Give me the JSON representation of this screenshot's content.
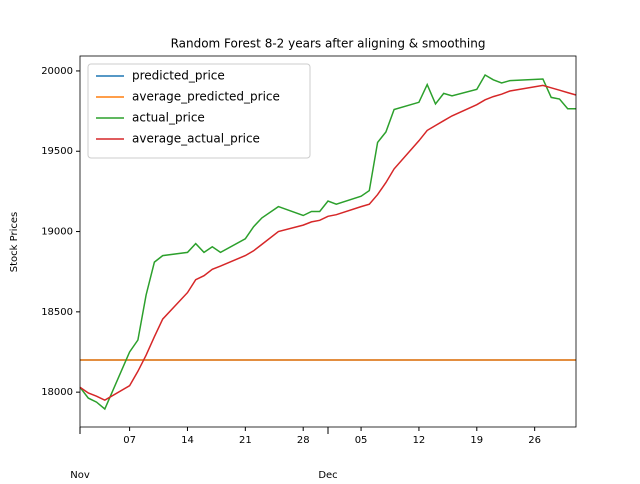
{
  "chart_data": {
    "type": "line",
    "title": "Random Forest 8-2 years after aligning & smoothing",
    "y_label": "Stock Prices",
    "x": [
      "11-01",
      "11-02",
      "11-03",
      "11-04",
      "11-07",
      "11-08",
      "11-09",
      "11-10",
      "11-11",
      "11-14",
      "11-15",
      "11-16",
      "11-17",
      "11-18",
      "11-21",
      "11-22",
      "11-23",
      "11-25",
      "11-28",
      "11-29",
      "11-30",
      "12-01",
      "12-02",
      "12-05",
      "12-06",
      "12-07",
      "12-08",
      "12-09",
      "12-12",
      "12-13",
      "12-14",
      "12-15",
      "12-16",
      "12-19",
      "12-20",
      "12-21",
      "12-22",
      "12-23",
      "12-27",
      "12-28",
      "12-29",
      "12-30",
      "12-31"
    ],
    "series": [
      {
        "name": "predicted_price",
        "color": "#1f77b4",
        "values": [
          18200,
          18200,
          18200,
          18200,
          18200,
          18200,
          18200,
          18200,
          18200,
          18200,
          18200,
          18200,
          18200,
          18200,
          18200,
          18200,
          18200,
          18200,
          18200,
          18200,
          18200,
          18200,
          18200,
          18200,
          18200,
          18200,
          18200,
          18200,
          18200,
          18200,
          18200,
          18200,
          18200,
          18200,
          18200,
          18200,
          18200,
          18200,
          18200,
          18200,
          18200,
          18200,
          18200
        ]
      },
      {
        "name": "average_predicted_price",
        "color": "#ff7f0e",
        "values": [
          18200,
          18200,
          18200,
          18200,
          18200,
          18200,
          18200,
          18200,
          18200,
          18200,
          18200,
          18200,
          18200,
          18200,
          18200,
          18200,
          18200,
          18200,
          18200,
          18200,
          18200,
          18200,
          18200,
          18200,
          18200,
          18200,
          18200,
          18200,
          18200,
          18200,
          18200,
          18200,
          18200,
          18200,
          18200,
          18200,
          18200,
          18200,
          18200,
          18200,
          18200,
          18200,
          18200
        ]
      },
      {
        "name": "actual_price",
        "color": "#2ca02c",
        "values": [
          18030,
          17963,
          17938,
          17895,
          18250,
          18325,
          18605,
          18810,
          18850,
          18870,
          18925,
          18870,
          18905,
          18870,
          18955,
          19030,
          19085,
          19155,
          19100,
          19125,
          19125,
          19190,
          19170,
          19220,
          19255,
          19555,
          19620,
          19760,
          19805,
          19915,
          19795,
          19860,
          19845,
          19885,
          19975,
          19945,
          19925,
          19940,
          19950,
          19835,
          19825,
          19765,
          19765
        ]
      },
      {
        "name": "average_actual_price",
        "color": "#d62728",
        "values": [
          18030,
          17995,
          17975,
          17950,
          18040,
          18130,
          18230,
          18345,
          18455,
          18620,
          18700,
          18725,
          18765,
          18785,
          18850,
          18880,
          18920,
          19000,
          19040,
          19060,
          19070,
          19095,
          19105,
          19155,
          19170,
          19230,
          19305,
          19390,
          19565,
          19630,
          19660,
          19690,
          19720,
          19790,
          19820,
          19840,
          19855,
          19875,
          19910,
          19895,
          19880,
          19865,
          19850
        ]
      }
    ],
    "xlim": [
      "11-01",
      "12-31"
    ],
    "xticks": [
      {
        "value": "11-07",
        "label": "07"
      },
      {
        "value": "11-14",
        "label": "14"
      },
      {
        "value": "11-21",
        "label": "21"
      },
      {
        "value": "11-28",
        "label": "28"
      },
      {
        "value": "12-05",
        "label": "05"
      },
      {
        "value": "12-12",
        "label": "12"
      },
      {
        "value": "12-19",
        "label": "19"
      },
      {
        "value": "12-26",
        "label": "26"
      }
    ],
    "month_ticks": [
      {
        "value": "11-01",
        "label": "Nov"
      },
      {
        "value": "12-01",
        "label": "Dec"
      }
    ],
    "ylim": [
      17783,
      20093
    ],
    "yticks": [
      18000,
      18500,
      19000,
      19500,
      20000
    ],
    "legend": "upper left"
  }
}
